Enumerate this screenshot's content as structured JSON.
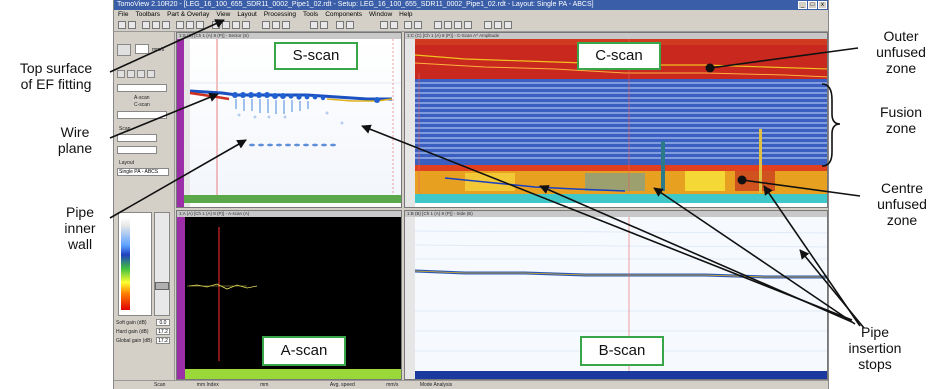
{
  "app": {
    "title": "TomoView 2.10R20 - [LEG_16_100_655_SDR11_0002_Pipe1_02.rdt - Setup: LEG_16_100_655_SDR11_0002_Pipe1_02.rdt - Layout: Single PA - ABCS]",
    "menu": [
      "File",
      "Toolbars",
      "Part & Overlay",
      "View",
      "Layout",
      "Processing",
      "Tools",
      "Components",
      "Window",
      "Help"
    ],
    "win_controls": [
      "_",
      "□",
      "x"
    ]
  },
  "left_panel": {
    "units": "mm/s",
    "items": [
      "A-scan",
      "C-scan",
      "Scan",
      "Layout",
      "Single PA - ABCS"
    ],
    "gain_labels": [
      "Soft gain (dB)",
      "Hard gain (dB)",
      "Global gain (dB)"
    ],
    "gain_values": [
      "0.0",
      "17.2",
      "17.2"
    ]
  },
  "panels": {
    "sscan": {
      "header": "1:S (S) [Ch 1 (A) 8 (P)] - Sector (S)"
    },
    "cscan": {
      "header": "1:C (C) [Ch 1 (A) 8 (P)] - C-Scan A^ Amplitude"
    },
    "ascan": {
      "header": "1:A (A) [Ch 1 (A) 8 (P)] - A-scan (A)"
    },
    "bscan": {
      "header": "1:B (B) [Ch 1 (A) 8 (P)] - Side (B)"
    }
  },
  "status_bar": [
    "Scan",
    "mm  Index",
    "mm",
    "Avg. speed",
    "mm/s",
    "Mode Analysis"
  ],
  "scan_labels": {
    "sscan": "S-scan",
    "cscan": "C-scan",
    "ascan": "A-scan",
    "bscan": "B-scan"
  },
  "annotations": {
    "top_surface": "Top surface\nof EF fitting",
    "wire_plane": "Wire\nplane",
    "pipe_inner_wall": "Pipe\ninner\nwall",
    "outer_unfused": "Outer\nunfused\nzone",
    "fusion_zone": "Fusion\nzone",
    "centre_unfused": "Centre\nunfused\nzone",
    "pipe_insertion": "Pipe\ninsertion\nstops"
  },
  "colors": {
    "frame_gray": "#d4d0c8",
    "label_border": "#3aa64a",
    "cscan_red": "#c8281e",
    "cscan_blue": "#3a5fc0",
    "ascan_bg": "#000000",
    "purple_bar": "#9b2fa7"
  }
}
